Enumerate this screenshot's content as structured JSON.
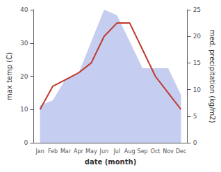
{
  "chart_data": {
    "type": "line",
    "categories": [
      "Jan",
      "Feb",
      "Mar",
      "Apr",
      "May",
      "Jun",
      "Jul",
      "Aug",
      "Sep",
      "Oct",
      "Nov",
      "Dec"
    ],
    "xlabel": "date (month)",
    "ylabel": "max temp (C)",
    "y2label": "med. precipitation (kg/m2)",
    "series": [
      {
        "type": "area",
        "axis": "y2",
        "color": "#c5cdf0",
        "values": [
          7,
          8,
          12,
          13,
          19,
          25,
          24,
          19,
          14,
          14,
          14,
          9
        ]
      },
      {
        "type": "line",
        "color": "#c0392b",
        "values": [
          10,
          17,
          19,
          21,
          24,
          32,
          36,
          36,
          28,
          20,
          15,
          10
        ]
      }
    ],
    "ylim": [
      0,
      40
    ],
    "yticks": [
      0,
      10,
      20,
      30,
      40
    ],
    "y2lim": [
      0,
      25
    ],
    "y2ticks": [
      0,
      5,
      10,
      15,
      20,
      25
    ],
    "grid": false
  }
}
